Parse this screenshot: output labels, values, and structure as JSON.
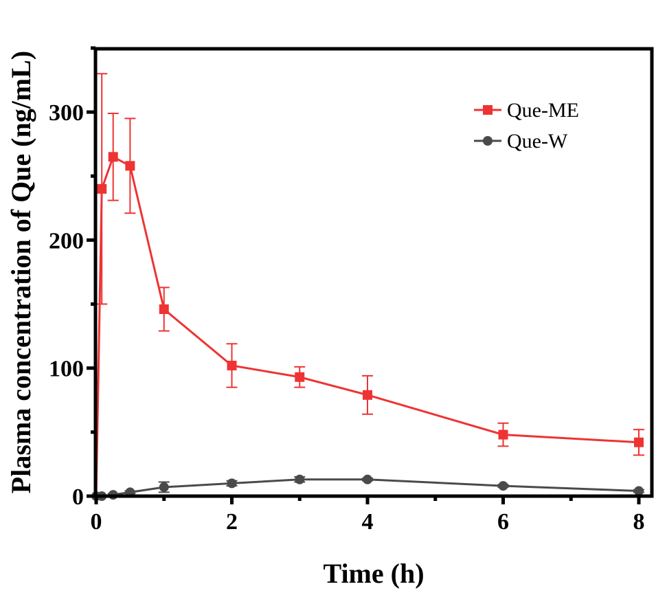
{
  "chart_data": {
    "type": "line",
    "title": "",
    "xlabel": "Time (h)",
    "ylabel": "Plasma concentration of Que (ng/mL)",
    "xlim": [
      0,
      8.2
    ],
    "ylim": [
      0,
      350
    ],
    "xticks": [
      0,
      2,
      4,
      6,
      8
    ],
    "yticks": [
      0,
      100,
      200,
      300
    ],
    "xtick_labels": [
      "0",
      "2",
      "4",
      "6",
      "8"
    ],
    "ytick_labels": [
      "0",
      "100",
      "200",
      "300"
    ],
    "grid": false,
    "legend": {
      "position": "top-right",
      "entries": [
        "Que-ME",
        "Que-W"
      ]
    },
    "series": [
      {
        "name": "Que-ME",
        "color": "#ee3333",
        "marker": "square",
        "x": [
          0,
          0.083,
          0.25,
          0.5,
          1,
          2,
          3,
          4,
          6,
          8
        ],
        "y": [
          0,
          240,
          265,
          258,
          146,
          102,
          93,
          79,
          48,
          42
        ],
        "yerr": [
          0,
          90,
          34,
          37,
          17,
          17,
          8,
          15,
          9,
          10
        ]
      },
      {
        "name": "Que-W",
        "color": "#4a4a4a",
        "marker": "circle",
        "x": [
          0,
          0.083,
          0.25,
          0.5,
          1,
          2,
          3,
          4,
          6,
          8
        ],
        "y": [
          0,
          0,
          1,
          3,
          7,
          10,
          13,
          13,
          8,
          4
        ],
        "yerr": [
          0,
          0,
          1,
          1,
          4,
          2,
          2,
          1,
          1,
          1
        ]
      }
    ]
  }
}
